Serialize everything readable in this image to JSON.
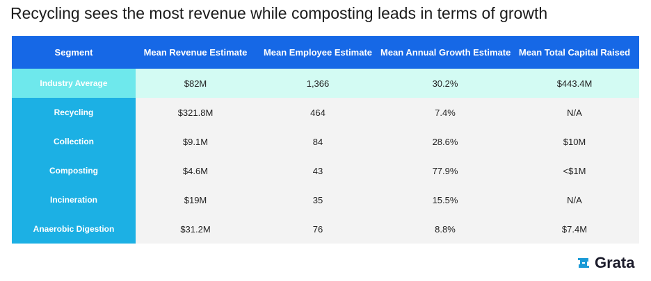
{
  "title": "Recycling sees the most revenue while composting leads in terms of growth",
  "chart_data": {
    "type": "table",
    "title": "Recycling sees the most revenue while composting leads in terms of growth",
    "columns": [
      "Segment",
      "Mean Revenue Estimate",
      "Mean Employee Estimate",
      "Mean Annual Growth Estimate",
      "Mean Total Capital Raised"
    ],
    "rows": [
      {
        "segment": "Industry Average",
        "revenue": "$82M",
        "employees": "1,366",
        "growth": "30.2%",
        "capital": "$443.4M",
        "highlight": true
      },
      {
        "segment": "Recycling",
        "revenue": "$321.8M",
        "employees": "464",
        "growth": "7.4%",
        "capital": "N/A"
      },
      {
        "segment": "Collection",
        "revenue": "$9.1M",
        "employees": "84",
        "growth": "28.6%",
        "capital": "$10M"
      },
      {
        "segment": "Composting",
        "revenue": "$4.6M",
        "employees": "43",
        "growth": "77.9%",
        "capital": "<$1M"
      },
      {
        "segment": "Incineration",
        "revenue": "$19M",
        "employees": "35",
        "growth": "15.5%",
        "capital": "N/A"
      },
      {
        "segment": "Anaerobic Digestion",
        "revenue": "$31.2M",
        "employees": "76",
        "growth": "8.8%",
        "capital": "$7.4M"
      }
    ]
  },
  "logo": {
    "text": "Grata",
    "icon": "grata-logo-icon"
  },
  "colors": {
    "header": "#1668e6",
    "segment": "#1cb0e4",
    "segment_highlight": "#6ee8ec",
    "row_highlight": "#d3fbf3",
    "row": "#f3f3f3"
  }
}
